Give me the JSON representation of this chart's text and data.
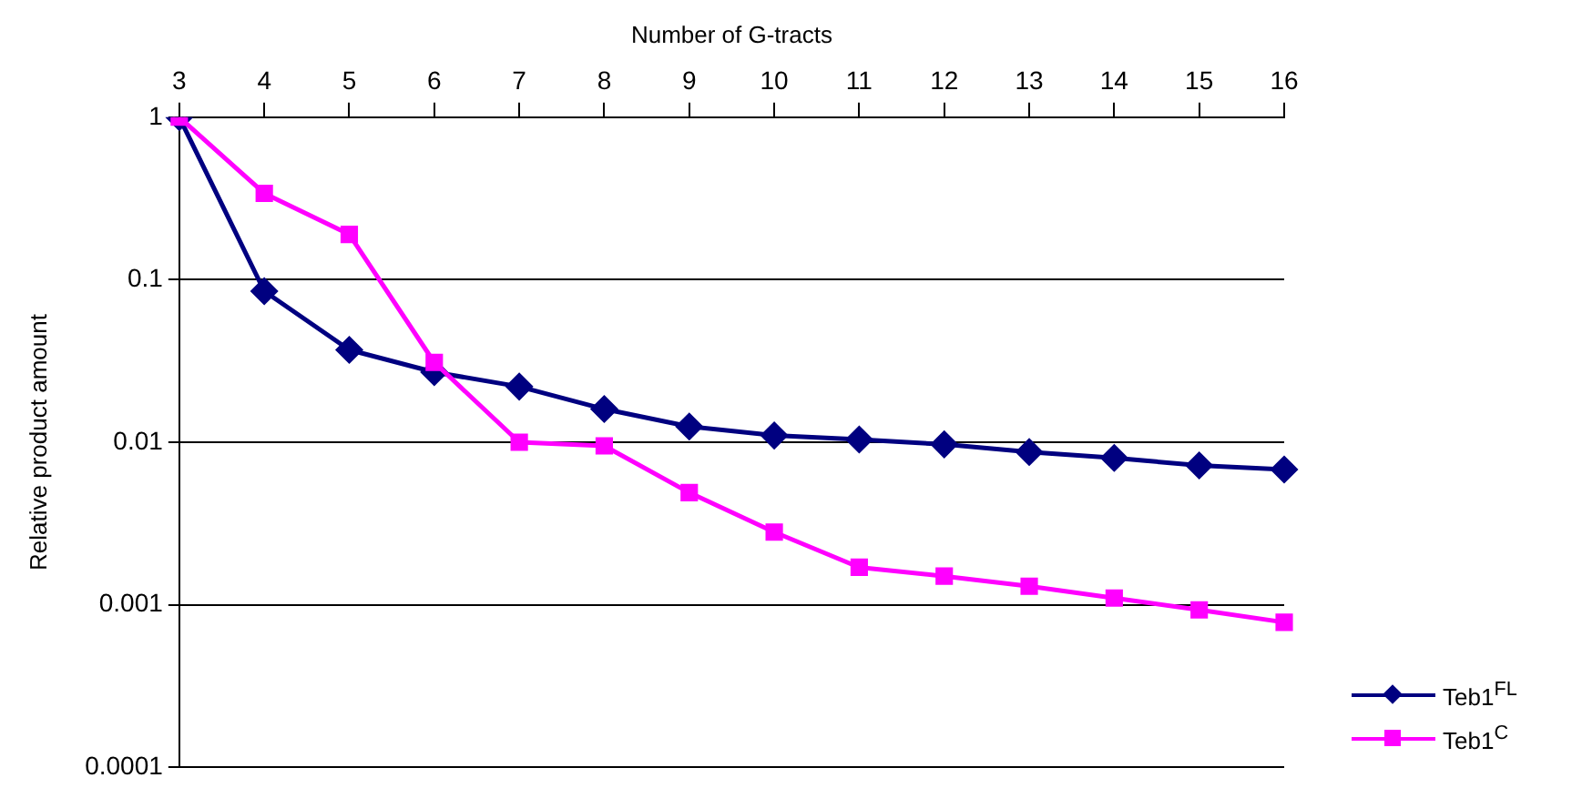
{
  "chart_data": {
    "type": "line",
    "xlabel": "Number of G-tracts",
    "ylabel": "Relative product amount",
    "categories": [
      "3",
      "4",
      "5",
      "6",
      "7",
      "8",
      "9",
      "10",
      "11",
      "12",
      "13",
      "14",
      "15",
      "16"
    ],
    "series": [
      {
        "name": "Teb1$^{FL}$",
        "color": "#000080",
        "marker": "diamond",
        "values": [
          1,
          0.085,
          0.037,
          0.027,
          0.022,
          0.016,
          0.0125,
          0.011,
          0.0104,
          0.0097,
          0.0087,
          0.008,
          0.0072,
          0.0068
        ]
      },
      {
        "name": "Teb1$^{C}$",
        "color": "#ff00ff",
        "marker": "square",
        "values": [
          1,
          0.34,
          0.19,
          0.031,
          0.01,
          0.0095,
          0.0049,
          0.0028,
          0.0017,
          0.0015,
          0.0013,
          0.0011,
          0.00093,
          0.00078
        ]
      }
    ],
    "log": "y",
    "ylim": [
      0.0001,
      1
    ],
    "yticks": [
      0.0001,
      0.001,
      0.01,
      0.1,
      1
    ],
    "grid": "y",
    "legend": "bottom right",
    "line_style": "solid"
  }
}
